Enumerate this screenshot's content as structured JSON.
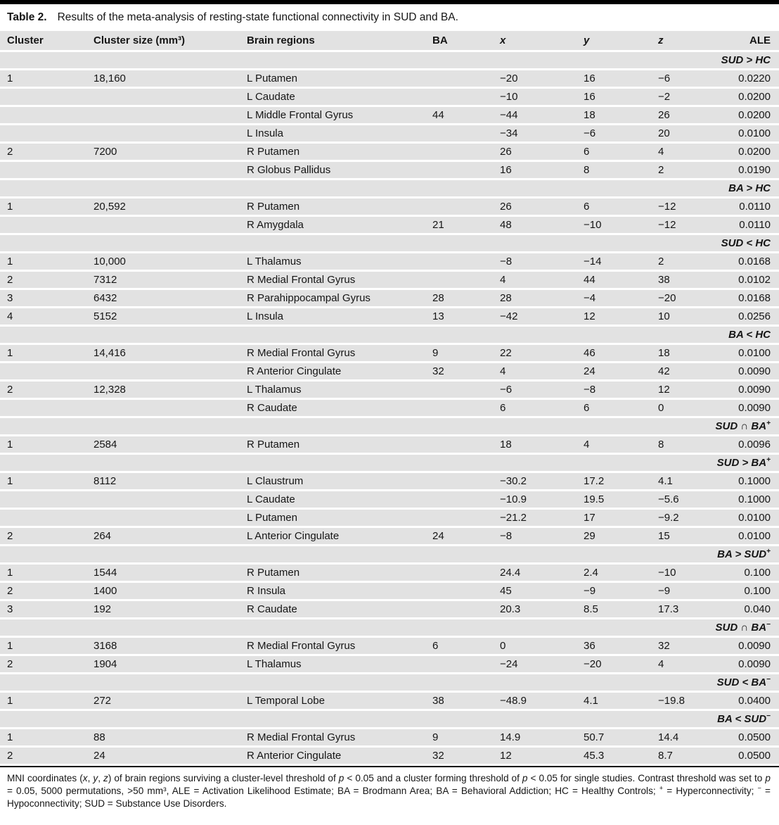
{
  "caption": {
    "label": "Table 2.",
    "text": "Results of the meta-analysis of resting-state functional connectivity in SUD and BA."
  },
  "table": {
    "columns": [
      {
        "label": "Cluster",
        "italic": false
      },
      {
        "label": "Cluster size (mm³)",
        "italic": false
      },
      {
        "label": "Brain regions",
        "italic": false
      },
      {
        "label": "BA",
        "italic": false
      },
      {
        "label": "x",
        "italic": true
      },
      {
        "label": "y",
        "italic": true
      },
      {
        "label": "z",
        "italic": true
      },
      {
        "label": "ALE",
        "italic": false
      }
    ],
    "sections": [
      {
        "name": "SUD > HC",
        "sup": "",
        "rows": [
          [
            "1",
            "18,160",
            "L Putamen",
            "",
            "−20",
            "16",
            "−6",
            "0.0220"
          ],
          [
            "",
            "",
            "L Caudate",
            "",
            "−10",
            "16",
            "−2",
            "0.0200"
          ],
          [
            "",
            "",
            "L Middle Frontal Gyrus",
            "44",
            "−44",
            "18",
            "26",
            "0.0200"
          ],
          [
            "",
            "",
            "L Insula",
            "",
            "−34",
            "−6",
            "20",
            "0.0100"
          ],
          [
            "2",
            "7200",
            "R Putamen",
            "",
            "26",
            "6",
            "4",
            "0.0200"
          ],
          [
            "",
            "",
            "R Globus Pallidus",
            "",
            "16",
            "8",
            "2",
            "0.0190"
          ]
        ]
      },
      {
        "name": "BA > HC",
        "sup": "",
        "rows": [
          [
            "1",
            "20,592",
            "R Putamen",
            "",
            "26",
            "6",
            "−12",
            "0.0110"
          ],
          [
            "",
            "",
            "R Amygdala",
            "21",
            "48",
            "−10",
            "−12",
            "0.0110"
          ]
        ]
      },
      {
        "name": "SUD < HC",
        "sup": "",
        "rows": [
          [
            "1",
            "10,000",
            "L Thalamus",
            "",
            "−8",
            "−14",
            "2",
            "0.0168"
          ],
          [
            "2",
            "7312",
            "R Medial Frontal Gyrus",
            "",
            "4",
            "44",
            "38",
            "0.0102"
          ],
          [
            "3",
            "6432",
            "R Parahippocampal Gyrus",
            "28",
            "28",
            "−4",
            "−20",
            "0.0168"
          ],
          [
            "4",
            "5152",
            "L Insula",
            "13",
            "−42",
            "12",
            "10",
            "0.0256"
          ]
        ]
      },
      {
        "name": "BA < HC",
        "sup": "",
        "rows": [
          [
            "1",
            "14,416",
            "R Medial Frontal Gyrus",
            "9",
            "22",
            "46",
            "18",
            "0.0100"
          ],
          [
            "",
            "",
            "R Anterior Cingulate",
            "32",
            "4",
            "24",
            "42",
            "0.0090"
          ],
          [
            "2",
            "12,328",
            "L Thalamus",
            "",
            "−6",
            "−8",
            "12",
            "0.0090"
          ],
          [
            "",
            "",
            "R Caudate",
            "",
            "6",
            "6",
            "0",
            "0.0090"
          ]
        ]
      },
      {
        "name": "SUD ∩ BA",
        "sup": "+",
        "rows": [
          [
            "1",
            "2584",
            "R Putamen",
            "",
            "18",
            "4",
            "8",
            "0.0096"
          ]
        ]
      },
      {
        "name": "SUD > BA",
        "sup": "+",
        "rows": [
          [
            "1",
            "8112",
            "L Claustrum",
            "",
            "−30.2",
            "17.2",
            "4.1",
            "0.1000"
          ],
          [
            "",
            "",
            "L Caudate",
            "",
            "−10.9",
            "19.5",
            "−5.6",
            "0.1000"
          ],
          [
            "",
            "",
            "L Putamen",
            "",
            "−21.2",
            "17",
            "−9.2",
            "0.0100"
          ],
          [
            "2",
            "264",
            "L Anterior Cingulate",
            "24",
            "−8",
            "29",
            "15",
            "0.0100"
          ]
        ]
      },
      {
        "name": "BA > SUD",
        "sup": "+",
        "rows": [
          [
            "1",
            "1544",
            "R Putamen",
            "",
            "24.4",
            "2.4",
            "−10",
            "0.100"
          ],
          [
            "2",
            "1400",
            "R Insula",
            "",
            "45",
            "−9",
            "−9",
            "0.100"
          ],
          [
            "3",
            "192",
            "R Caudate",
            "",
            "20.3",
            "8.5",
            "17.3",
            "0.040"
          ]
        ]
      },
      {
        "name": "SUD ∩ BA",
        "sup": "−",
        "rows": [
          [
            "1",
            "3168",
            "R Medial Frontal Gyrus",
            "6",
            "0",
            "36",
            "32",
            "0.0090"
          ],
          [
            "2",
            "1904",
            "L Thalamus",
            "",
            "−24",
            "−20",
            "4",
            "0.0090"
          ]
        ]
      },
      {
        "name": "SUD < BA",
        "sup": "−",
        "rows": [
          [
            "1",
            "272",
            "L Temporal Lobe",
            "38",
            "−48.9",
            "4.1",
            "−19.8",
            "0.0400"
          ]
        ]
      },
      {
        "name": "BA < SUD",
        "sup": "−",
        "rows": [
          [
            "1",
            "88",
            "R Medial Frontal Gyrus",
            "9",
            "14.9",
            "50.7",
            "14.4",
            "0.0500"
          ],
          [
            "2",
            "24",
            "R Anterior Cingulate",
            "32",
            "12",
            "45.3",
            "8.7",
            "0.0500"
          ]
        ]
      }
    ]
  },
  "footnote": {
    "segments": [
      {
        "t": "MNI coordinates ("
      },
      {
        "t": "x",
        "i": true
      },
      {
        "t": ", "
      },
      {
        "t": "y",
        "i": true
      },
      {
        "t": ", "
      },
      {
        "t": "z",
        "i": true
      },
      {
        "t": ") of brain regions surviving a cluster-level threshold of "
      },
      {
        "t": "p",
        "i": true
      },
      {
        "t": " < 0.05 and a cluster forming threshold of "
      },
      {
        "t": "p",
        "i": true
      },
      {
        "t": " < 0.05 for single studies. Contrast threshold was set to "
      },
      {
        "t": "p",
        "i": true
      },
      {
        "t": " = 0.05, 5000 permutations, >50 mm³, ALE = Activation Likelihood Estimate; BA = Brodmann Area; BA = Behavioral Addiction; HC = Healthy Controls; "
      },
      {
        "t": "+",
        "sup": true
      },
      {
        "t": " = Hyperconnectivity; "
      },
      {
        "t": "−",
        "sup": true
      },
      {
        "t": " = Hypoconnectivity; SUD = Substance Use Disorders."
      }
    ]
  },
  "colors": {
    "row_bg": "#e2e2e2",
    "rule": "#000000",
    "text": "#151515"
  }
}
